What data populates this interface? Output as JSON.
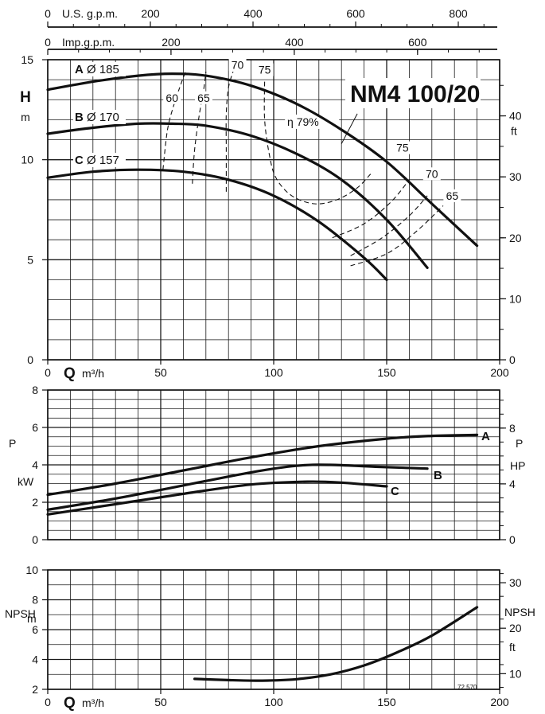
{
  "model_title": "NM4 100/20",
  "drawing_code": "72.570",
  "top_scales": {
    "us_label": "U.S. g.p.m.",
    "us_ticks": [
      "0",
      "200",
      "400",
      "600",
      "800"
    ],
    "imp_label": "Imp.g.p.m.",
    "imp_ticks": [
      "0",
      "200",
      "400",
      "600"
    ]
  },
  "chart_data": [
    {
      "type": "line",
      "panel": "head",
      "ylabel_left": [
        "H",
        "m"
      ],
      "ylabel_right": [
        "ft"
      ],
      "xlabel_symbol": "Q",
      "xlabel_unit": "m³/h",
      "xlim": [
        0,
        200
      ],
      "ylim": [
        0,
        15
      ],
      "x_ticks": [
        "0",
        "50",
        "100",
        "150",
        "200"
      ],
      "y_ticks_left": [
        "0",
        "5",
        "10",
        "15"
      ],
      "y_ticks_right": [
        "0",
        "10",
        "20",
        "30",
        "40"
      ],
      "series": [
        {
          "name": "A",
          "diameter_label": "Ø 185",
          "x": [
            0,
            20,
            40,
            55,
            70,
            90,
            110,
            130,
            150,
            170,
            190
          ],
          "y": [
            13.5,
            13.9,
            14.2,
            14.3,
            14.2,
            13.7,
            12.8,
            11.5,
            9.9,
            7.8,
            5.7
          ]
        },
        {
          "name": "B",
          "diameter_label": "Ø 170",
          "x": [
            0,
            20,
            40,
            55,
            70,
            90,
            110,
            130,
            150,
            168
          ],
          "y": [
            11.3,
            11.6,
            11.8,
            11.8,
            11.7,
            11.2,
            10.3,
            9.0,
            7.0,
            4.6
          ]
        },
        {
          "name": "C",
          "diameter_label": "Ø 157",
          "x": [
            0,
            20,
            40,
            60,
            80,
            100,
            120,
            140,
            150
          ],
          "y": [
            9.1,
            9.4,
            9.5,
            9.4,
            9.0,
            8.2,
            6.9,
            5.1,
            4.0
          ]
        }
      ],
      "efficiency": {
        "prefix": "η",
        "contours": [
          {
            "label": "60",
            "x": [
              51,
              53,
              56,
              59,
              61
            ],
            "y": [
              9.5,
              11.5,
              12.8,
              13.8,
              14.4
            ]
          },
          {
            "label": "65",
            "x": [
              64,
              65,
              67,
              69,
              70
            ],
            "y": [
              8.8,
              10.5,
              12.2,
              13.5,
              14.4
            ]
          },
          {
            "label": "70",
            "x": [
              79,
              79,
              79,
              80,
              82
            ],
            "y": [
              8.4,
              10.5,
              12.3,
              13.6,
              14.4
            ]
          },
          {
            "label": "75",
            "x": [
              96,
              96,
              98,
              101,
              108,
              118,
              128,
              137,
              143
            ],
            "y": [
              13.9,
              12.0,
              10.3,
              9.1,
              8.2,
              7.8,
              8.0,
              8.6,
              9.3
            ]
          },
          {
            "label": "75",
            "x": [
              126,
              140,
              152,
              160
            ],
            "y": [
              6.1,
              6.8,
              7.9,
              9.0
            ]
          },
          {
            "label": "70",
            "x": [
              134,
              148,
              160,
              168
            ],
            "y": [
              5.2,
              6.1,
              7.2,
              8.2
            ]
          },
          {
            "label": "65",
            "x": [
              134,
              150,
              163,
              175
            ],
            "y": [
              4.7,
              5.3,
              6.4,
              7.7
            ]
          }
        ],
        "peak_label": "79%"
      }
    },
    {
      "type": "line",
      "panel": "power",
      "ylabel_left": [
        "P",
        "kW"
      ],
      "ylabel_right": [
        "P",
        "HP"
      ],
      "xlim": [
        0,
        200
      ],
      "ylim": [
        0,
        8
      ],
      "y_ticks_left": [
        "0",
        "2",
        "4",
        "6",
        "8"
      ],
      "y_ticks_right": [
        "0",
        "4",
        "8"
      ],
      "series": [
        {
          "name": "A",
          "x": [
            0,
            30,
            60,
            90,
            120,
            150,
            170,
            190
          ],
          "y": [
            2.4,
            3.0,
            3.7,
            4.4,
            5.0,
            5.4,
            5.55,
            5.6
          ]
        },
        {
          "name": "B",
          "x": [
            0,
            30,
            60,
            90,
            110,
            125,
            145,
            168
          ],
          "y": [
            1.6,
            2.2,
            2.9,
            3.6,
            3.95,
            4.0,
            3.9,
            3.8
          ]
        },
        {
          "name": "C",
          "x": [
            0,
            30,
            60,
            90,
            115,
            130,
            150
          ],
          "y": [
            1.35,
            1.9,
            2.45,
            2.95,
            3.1,
            3.05,
            2.85
          ]
        }
      ]
    },
    {
      "type": "line",
      "panel": "npsh",
      "ylabel_left": [
        "NPSH",
        "m"
      ],
      "ylabel_right": [
        "NPSH",
        "ft"
      ],
      "xlabel_symbol": "Q",
      "xlabel_unit": "m³/h",
      "xlim": [
        0,
        200
      ],
      "ylim": [
        2,
        10
      ],
      "x_ticks": [
        "0",
        "50",
        "100",
        "150",
        "200"
      ],
      "y_ticks_left": [
        "2",
        "4",
        "6",
        "8",
        "10"
      ],
      "y_ticks_right": [
        "10",
        "20",
        "30"
      ],
      "series": [
        {
          "name": "NPSH",
          "x": [
            65,
            80,
            95,
            110,
            125,
            140,
            155,
            170,
            190
          ],
          "y": [
            2.7,
            2.62,
            2.58,
            2.68,
            3.0,
            3.6,
            4.5,
            5.6,
            7.5
          ]
        }
      ]
    }
  ]
}
